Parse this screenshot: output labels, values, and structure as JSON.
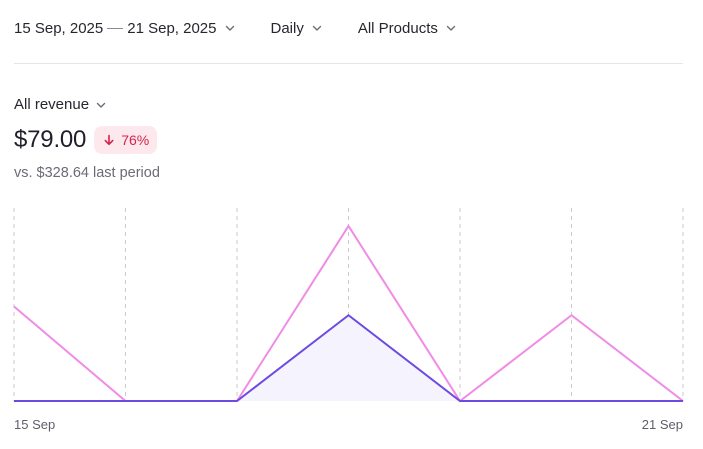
{
  "filters": {
    "date_start": "15 Sep, 2025",
    "date_end": "21 Sep, 2025",
    "interval": "Daily",
    "products": "All Products"
  },
  "metric": {
    "selector_label": "All revenue",
    "value": "$79.00",
    "change_badge": "76%",
    "change_direction": "down",
    "comparison_text": "vs. $328.64 last period"
  },
  "colors": {
    "current": "#6d4be0",
    "previous": "#f08ce6",
    "badge_bg": "#fde8ee",
    "badge_text": "#d6234a"
  },
  "icons": {
    "filter_chevron": "chevron-down-icon",
    "badge_arrow": "arrow-down-icon"
  },
  "chart_data": {
    "type": "line",
    "x": [
      "15 Sep",
      "16 Sep",
      "17 Sep",
      "18 Sep",
      "19 Sep",
      "20 Sep",
      "21 Sep"
    ],
    "x_tick_labels_shown": [
      "15 Sep",
      "21 Sep"
    ],
    "ylim": [
      0,
      100
    ],
    "grid": "vertical dashed",
    "series": [
      {
        "role": "previous period",
        "values": [
          54,
          0,
          0,
          100,
          0,
          49,
          0
        ]
      },
      {
        "role": "current period",
        "values": [
          0,
          0,
          0,
          49,
          0,
          0,
          0
        ],
        "area_fill": true
      }
    ]
  }
}
